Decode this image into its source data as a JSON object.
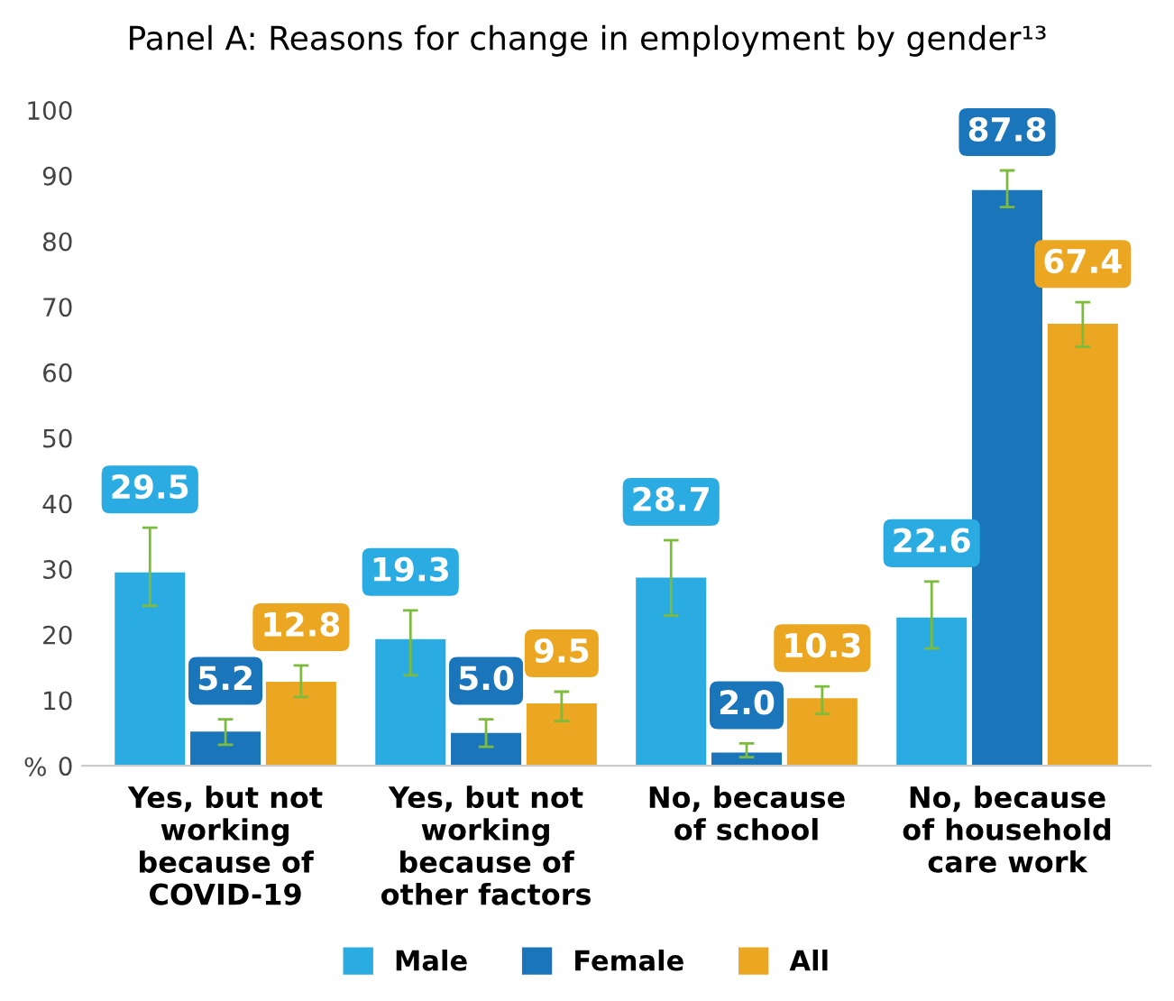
{
  "chart_data": {
    "type": "bar",
    "title": "Panel A: Reasons for change in employment by gender¹³",
    "ylabel": "%",
    "categories": [
      "Yes, but not\nworking\nbecause of\nCOVID-19",
      "Yes, but not\nworking\nbecause of\nother factors",
      "No, because\nof school",
      "No, because\nof household\ncare work"
    ],
    "series": [
      {
        "name": "Male",
        "color": "#2aabe2",
        "values": [
          29.5,
          19.3,
          28.7,
          22.6
        ],
        "value_labels": [
          "29.5",
          "19.3",
          "28.7",
          "22.6"
        ],
        "errors": [
          [
            24.4,
            36.3
          ],
          [
            13.8,
            23.7
          ],
          [
            22.9,
            34.4
          ],
          [
            17.9,
            28.1
          ]
        ]
      },
      {
        "name": "Female",
        "color": "#1b75bb",
        "values": [
          5.2,
          5.0,
          2.0,
          87.8
        ],
        "value_labels": [
          "5.2",
          "5.0",
          "2.0",
          "87.8"
        ],
        "errors": [
          [
            3.2,
            7.1
          ],
          [
            2.9,
            7.1
          ],
          [
            1.3,
            3.4
          ],
          [
            85.2,
            90.8
          ]
        ]
      },
      {
        "name": "All",
        "color": "#eba722",
        "values": [
          12.8,
          9.5,
          10.3,
          67.4
        ],
        "value_labels": [
          "12.8",
          "9.5",
          "10.3",
          "67.4"
        ],
        "errors": [
          [
            10.5,
            15.3
          ],
          [
            6.8,
            11.3
          ],
          [
            7.9,
            12.1
          ],
          [
            63.9,
            70.7
          ]
        ]
      }
    ],
    "ylim": [
      0,
      100
    ],
    "yticks": [
      0,
      10,
      20,
      30,
      40,
      50,
      60,
      70,
      80,
      90,
      100
    ],
    "grid": false,
    "legend": "bottom"
  }
}
